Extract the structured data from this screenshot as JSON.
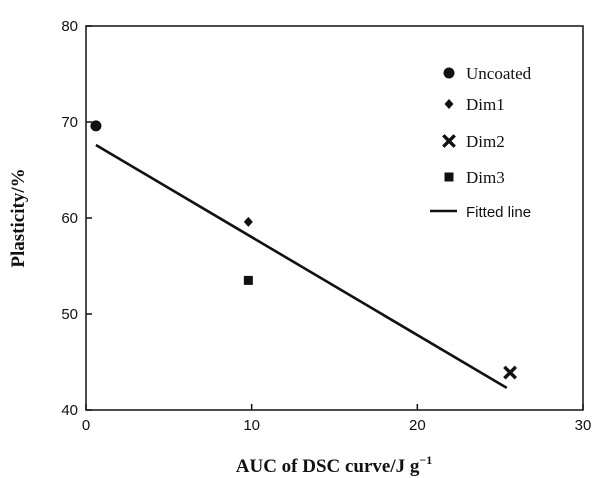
{
  "chart_data": {
    "type": "scatter",
    "xlabel": "AUC of DSC curve/J g",
    "xlabel_superscript": "−1",
    "ylabel": "Plasticity/%",
    "xlim": [
      0,
      30
    ],
    "ylim": [
      40,
      80
    ],
    "x_ticks": [
      "0",
      "10",
      "20",
      "30"
    ],
    "y_ticks": [
      "40",
      "50",
      "60",
      "70",
      "80"
    ],
    "grid": false,
    "legend_position": "top-right",
    "series": [
      {
        "name": "Uncoated",
        "marker": "circle",
        "points": [
          {
            "x": 0.6,
            "y": 69.6
          }
        ]
      },
      {
        "name": "Dim1",
        "marker": "diamond",
        "points": [
          {
            "x": 9.8,
            "y": 59.6
          }
        ]
      },
      {
        "name": "Dim2",
        "marker": "x",
        "points": [
          {
            "x": 25.6,
            "y": 43.9
          }
        ]
      },
      {
        "name": "Dim3",
        "marker": "square",
        "points": [
          {
            "x": 9.8,
            "y": 53.5
          }
        ]
      }
    ],
    "fitted_line": {
      "name": "Fitted line",
      "x": [
        0.6,
        25.4
      ],
      "y": [
        67.6,
        42.3
      ]
    }
  }
}
